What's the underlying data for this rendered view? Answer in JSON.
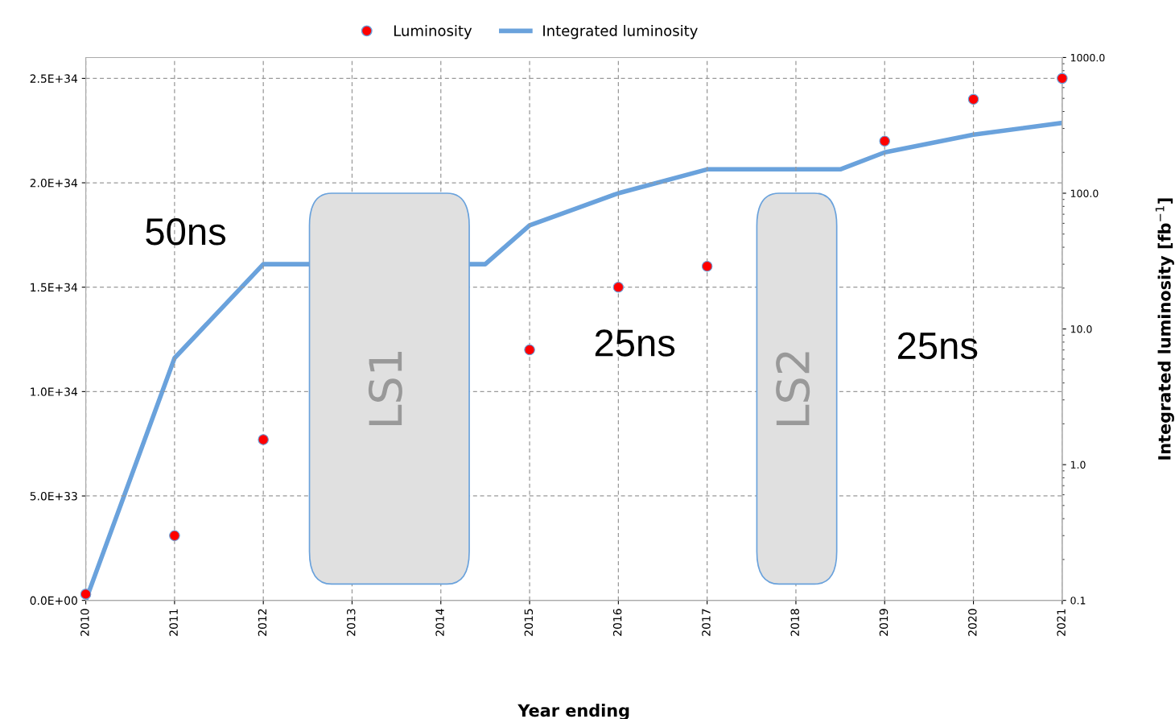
{
  "chart_data": {
    "type": "scatter",
    "series": [
      {
        "name": "Luminosity",
        "marker": "circle",
        "color": "#ff0000",
        "x": [
          2010,
          2011,
          2012,
          2015,
          2016,
          2017,
          2019,
          2020,
          2021
        ],
        "values": [
          3e+32,
          3.1e+33,
          7.7e+33,
          1.2e+34,
          1.5e+34,
          1.6e+34,
          2.2e+34,
          2.4e+34,
          2.5e+34
        ]
      },
      {
        "name": "Integrated luminosity",
        "type": "line",
        "axis": "y2",
        "color": "#6aa2dc",
        "x": [
          2010,
          2011,
          2012,
          2014.5,
          2015,
          2016,
          2017,
          2018.5,
          2019,
          2020,
          2021
        ],
        "values": [
          0.1,
          6.1,
          30,
          30,
          58,
          100,
          150,
          150,
          200,
          270,
          330
        ]
      }
    ],
    "xlabel": "Year ending",
    "y2label": "Integrated luminosity [fb$^{−1}$]",
    "xlim": [
      2010,
      2021
    ],
    "xticks": [
      2010,
      2011,
      2012,
      2013,
      2014,
      2015,
      2016,
      2017,
      2018,
      2019,
      2020,
      2021
    ],
    "ylim": [
      0,
      2.6e+34
    ],
    "yticks": [
      {
        "value": 0,
        "label": "0.0E+00"
      },
      {
        "value": 5e+33,
        "label": "5.0E+33"
      },
      {
        "value": 1e+34,
        "label": "1.0E+34"
      },
      {
        "value": 1.5e+34,
        "label": "1.5E+34"
      },
      {
        "value": 2e+34,
        "label": "2.0E+34"
      },
      {
        "value": 2.5e+34,
        "label": "2.5E+34"
      }
    ],
    "log": "y2",
    "y2lim": [
      0.1,
      1000
    ],
    "y2ticks": [
      {
        "value": 0.1,
        "label": "0.1"
      },
      {
        "value": 1,
        "label": "1.0"
      },
      {
        "value": 10,
        "label": "10.0"
      },
      {
        "value": 100,
        "label": "100.0"
      },
      {
        "value": 1000,
        "label": "1000.0"
      }
    ],
    "bands": [
      {
        "axis": "x",
        "from": 2012.52,
        "to": 2014.32,
        "label": "LS1",
        "color": "#e0e0e0"
      },
      {
        "axis": "x",
        "from": 2017.56,
        "to": 2018.46,
        "label": "LS2",
        "color": "#e0e0e0"
      }
    ],
    "annotations": [
      "50ns",
      "25ns",
      "25ns"
    ],
    "grid": true,
    "legend": "top",
    "line_style": "solid"
  }
}
